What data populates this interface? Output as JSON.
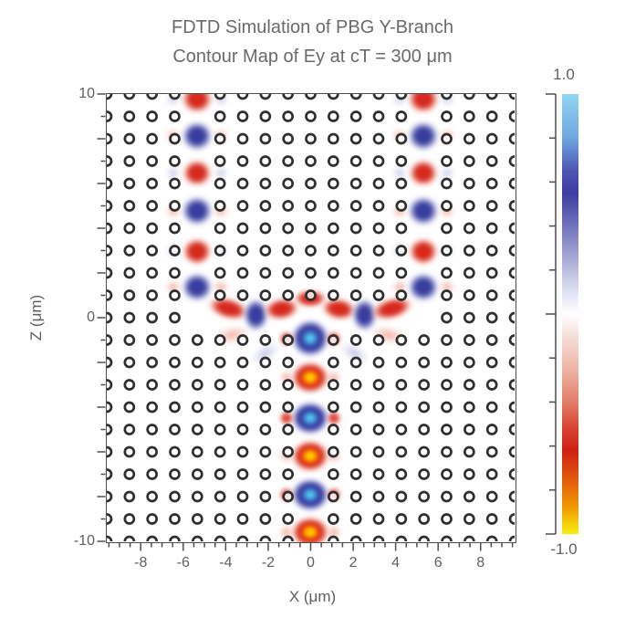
{
  "figure": {
    "title": "FDTD Simulation of PBG Y-Branch",
    "subtitle": "Contour Map of Ey at cT = 300 μm"
  },
  "colors": {
    "background": "#ffffff",
    "title_text": "#6a6a6a",
    "axis_text": "#5f5f5f",
    "spine": "#4d4d4d",
    "ring_stroke": "#2f2f2f",
    "blob_red": "#d7281c",
    "blob_blue": "#383d9e",
    "core_yellow": "#ffe400",
    "core_cyan": "#52d2f0"
  },
  "chart_data": {
    "type": "heatmap",
    "title": "FDTD Simulation of PBG Y-Branch",
    "subtitle": "Contour Map of Ey at cT = 300 μm",
    "quantity": "Ey field amplitude, normalized",
    "x_axis": {
      "label": "X (μm)",
      "range": [
        -9.6,
        9.6
      ],
      "major_ticks": [
        -8,
        -6,
        -4,
        -2,
        0,
        2,
        4,
        6,
        8
      ],
      "minor_tick_step": 0.5
    },
    "z_axis": {
      "label": "Z (μm)",
      "range": [
        10,
        -10
      ],
      "tick_step": 1,
      "major_tick_step": 2,
      "labeled_ticks": [
        10,
        0,
        -10
      ]
    },
    "colorbar": {
      "label_top": "1.0",
      "label_bottom": "-1.0",
      "range_min": -1.0,
      "range_max": 1.0,
      "tick_step": 0.2,
      "stops": [
        {
          "v": 1.0,
          "c": "#90d6f2"
        },
        {
          "v": 0.8,
          "c": "#6fa6e0"
        },
        {
          "v": 0.65,
          "c": "#4d55b2"
        },
        {
          "v": 0.55,
          "c": "#3d3da0"
        },
        {
          "v": 0.4,
          "c": "#7173bc"
        },
        {
          "v": 0.25,
          "c": "#a9aad6"
        },
        {
          "v": 0.1,
          "c": "#e0e2f2"
        },
        {
          "v": 0.0,
          "c": "#ffffff"
        },
        {
          "v": -0.1,
          "c": "#f6ded8"
        },
        {
          "v": -0.25,
          "c": "#eeb4a6"
        },
        {
          "v": -0.4,
          "c": "#e07e68"
        },
        {
          "v": -0.52,
          "c": "#d84430"
        },
        {
          "v": -0.62,
          "c": "#cf1f12"
        },
        {
          "v": -0.75,
          "c": "#e2590d"
        },
        {
          "v": -0.88,
          "c": "#f09b00"
        },
        {
          "v": -1.0,
          "c": "#f7ee12"
        }
      ]
    },
    "lattice": {
      "description": "square lattice of photonic-crystal holes drawn as rings",
      "cols": 19,
      "rows": 21,
      "x0": -9.6,
      "dx": 1.0667,
      "z0": 10,
      "dz": -1,
      "ring_radius_px": 5.0,
      "ring_stroke_px": 2.7,
      "missing_sites": [
        {
          "c": [
            4,
            4
          ],
          "r": [
            0,
            9
          ],
          "what": "left output branch waveguide"
        },
        {
          "c": [
            14,
            14
          ],
          "r": [
            0,
            9
          ],
          "what": "right output branch waveguide"
        },
        {
          "c": [
            4,
            14
          ],
          "r": [
            10,
            10
          ],
          "what": "junction row"
        },
        {
          "c": [
            9,
            9
          ],
          "r": [
            10,
            20
          ],
          "what": "input stem waveguide"
        }
      ]
    },
    "amplitude_by_kind": {
      "blue-hot": 1.0,
      "blue": 0.8,
      "lblue": 0.3,
      "pink": -0.3,
      "red": -0.8,
      "red-hot": -1.0
    },
    "satellite": {
      "dx": 1.12,
      "w": 0.78,
      "h": 0.72,
      "opacity": {
        "red": 0.85,
        "pink": 0.6,
        "lblue": 0.45
      }
    },
    "field_blobs": [
      {
        "x": -5.33,
        "z": 9.75,
        "w": 1.6,
        "h": 1.45,
        "k": "red",
        "sat": "lblue"
      },
      {
        "x": -5.33,
        "z": 8.1,
        "w": 1.6,
        "h": 1.45,
        "k": "blue",
        "sat": "pink"
      },
      {
        "x": -5.33,
        "z": 6.45,
        "w": 1.55,
        "h": 1.35,
        "k": "red",
        "sat": "lblue"
      },
      {
        "x": -5.33,
        "z": 4.75,
        "w": 1.6,
        "h": 1.45,
        "k": "blue",
        "sat": "pink"
      },
      {
        "x": -5.33,
        "z": 2.95,
        "w": 1.55,
        "h": 1.35,
        "k": "red",
        "sat": "lblue"
      },
      {
        "x": -5.33,
        "z": 1.35,
        "w": 1.6,
        "h": 1.45,
        "k": "blue",
        "sat": "pink"
      },
      {
        "x": 5.33,
        "z": 9.75,
        "w": 1.6,
        "h": 1.45,
        "k": "red",
        "sat": "lblue"
      },
      {
        "x": 5.33,
        "z": 8.1,
        "w": 1.6,
        "h": 1.45,
        "k": "blue",
        "sat": "pink"
      },
      {
        "x": 5.33,
        "z": 6.45,
        "w": 1.55,
        "h": 1.35,
        "k": "red",
        "sat": "lblue"
      },
      {
        "x": 5.33,
        "z": 4.75,
        "w": 1.6,
        "h": 1.45,
        "k": "blue",
        "sat": "pink"
      },
      {
        "x": 5.33,
        "z": 2.95,
        "w": 1.55,
        "h": 1.35,
        "k": "red",
        "sat": "lblue"
      },
      {
        "x": 5.33,
        "z": 1.35,
        "w": 1.6,
        "h": 1.45,
        "k": "blue",
        "sat": "pink"
      },
      {
        "x": -3.85,
        "z": 0.4,
        "w": 2.2,
        "h": 1.05,
        "k": "red",
        "rot": 15
      },
      {
        "x": -2.55,
        "z": 0.1,
        "w": 1.35,
        "h": 1.65,
        "k": "blue"
      },
      {
        "x": -1.35,
        "z": 0.35,
        "w": 1.85,
        "h": 1.1,
        "k": "red",
        "rot": -8
      },
      {
        "x": 0,
        "z": 0.85,
        "w": 1.75,
        "h": 0.9,
        "k": "red"
      },
      {
        "x": 1.35,
        "z": 0.35,
        "w": 1.85,
        "h": 1.1,
        "k": "red",
        "rot": 8
      },
      {
        "x": 2.55,
        "z": 0.1,
        "w": 1.35,
        "h": 1.65,
        "k": "blue"
      },
      {
        "x": 3.85,
        "z": 0.4,
        "w": 2.2,
        "h": 1.05,
        "k": "red",
        "rot": -15
      },
      {
        "x": -3.7,
        "z": -0.8,
        "w": 1.7,
        "h": 0.8,
        "k": "pink",
        "rot": -12,
        "op": 0.6
      },
      {
        "x": 3.7,
        "z": -0.8,
        "w": 1.7,
        "h": 0.8,
        "k": "pink",
        "rot": 12,
        "op": 0.6
      },
      {
        "x": -2.1,
        "z": -1.6,
        "w": 1.6,
        "h": 0.8,
        "k": "lblue",
        "rot": -32,
        "op": 0.5
      },
      {
        "x": 2.1,
        "z": -1.6,
        "w": 1.6,
        "h": 0.8,
        "k": "lblue",
        "rot": 32,
        "op": 0.5
      },
      {
        "x": 0,
        "z": -0.95,
        "w": 2.0,
        "h": 1.85,
        "k": "blue-hot",
        "sat": "red"
      },
      {
        "x": 0,
        "z": -2.7,
        "w": 1.95,
        "h": 1.6,
        "k": "red-hot",
        "sat": "pink"
      },
      {
        "x": 0,
        "z": -4.5,
        "w": 2.0,
        "h": 1.65,
        "k": "blue-hot",
        "sat": "red"
      },
      {
        "x": 0,
        "z": -6.2,
        "w": 1.95,
        "h": 1.6,
        "k": "red-hot",
        "sat": "pink"
      },
      {
        "x": 0,
        "z": -7.95,
        "w": 2.0,
        "h": 1.65,
        "k": "blue-hot",
        "sat": "red"
      },
      {
        "x": 0,
        "z": -9.6,
        "w": 1.95,
        "h": 1.55,
        "k": "red-hot",
        "sat": "pink"
      }
    ]
  }
}
